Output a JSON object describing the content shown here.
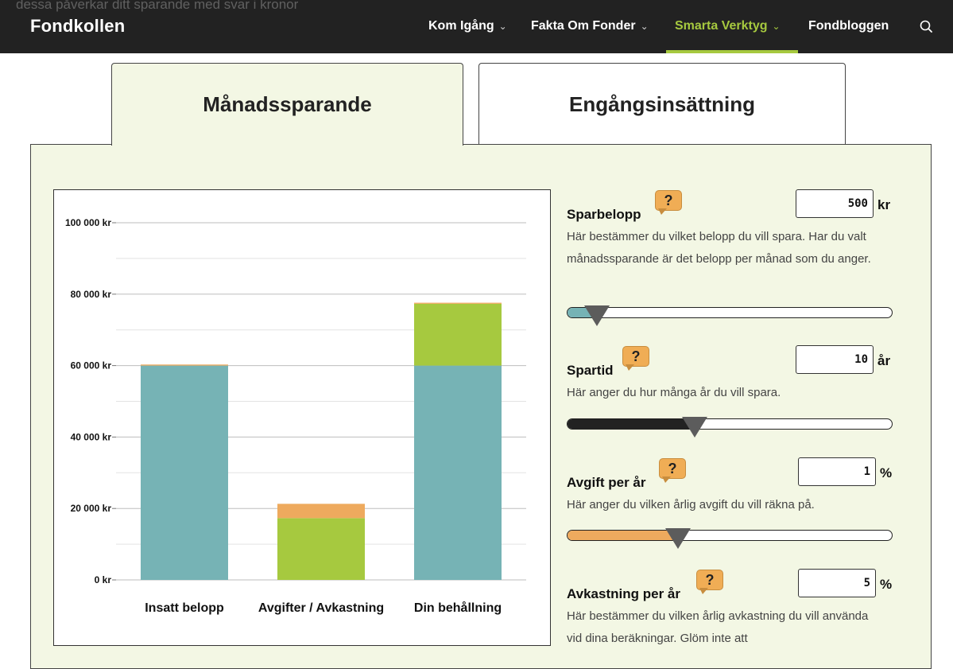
{
  "nav": {
    "ghost_text": "dessa påverkar ditt sparande med svar i kronor",
    "logo": "Fondkollen",
    "items": [
      {
        "label": "Kom Igång",
        "chevron": "⌄",
        "active": false
      },
      {
        "label": "Fakta Om Fonder",
        "chevron": "⌄",
        "active": false
      },
      {
        "label": "Smarta Verktyg",
        "chevron": "⌄",
        "active": true
      },
      {
        "label": "Fondbloggen",
        "chevron": "",
        "active": false
      }
    ],
    "search_icon": "search-icon"
  },
  "tabs": [
    {
      "label": "Månadssparande",
      "selected": true
    },
    {
      "label": "Engångsinsättning",
      "selected": false
    }
  ],
  "colors": {
    "accent_green": "#a6c93f",
    "teal": "#76b3b5",
    "fee_orange": "#eeaa5e",
    "panel_bg": "#f3f7e4",
    "slider_dark": "#222222",
    "thumb": "#5c5c5c"
  },
  "chart_data": {
    "type": "bar",
    "stacked": true,
    "categories": [
      "Insatt belopp",
      "Avgifter / Avkastning",
      "Din behållning"
    ],
    "yticks": [
      "0 kr",
      "20 000 kr",
      "40 000 kr",
      "60 000 kr",
      "80 000 kr",
      "100 000 kr"
    ],
    "ylim": [
      0,
      100000
    ],
    "grid": true,
    "series": [
      {
        "color": "#76b3b5",
        "values": [
          60000,
          0,
          60000
        ]
      },
      {
        "color": "#a6c93f",
        "values": [
          0,
          17300,
          17300
        ]
      },
      {
        "color": "#eeaa5e",
        "values": [
          300,
          4000,
          300
        ]
      }
    ]
  },
  "controls": {
    "sparbelopp": {
      "title": "Sparbelopp",
      "help": "?",
      "value": "500",
      "unit": "kr",
      "desc": "Här bestämmer du vilket belopp du vill spara. Har du valt månadssparande är det belopp per månad som du anger.",
      "slider_level": 0.09,
      "slider_color": "#76b3b5"
    },
    "spartid": {
      "title": "Spartid",
      "help": "?",
      "value": "10",
      "unit": "år",
      "desc": "Här anger du hur många år du vill spara.",
      "slider_level": 0.39,
      "slider_color": "#222222"
    },
    "avgift": {
      "title": "Avgift per år",
      "help": "?",
      "value": "1",
      "unit": "%",
      "desc": "Här anger du vilken årlig avgift du vill räkna på.",
      "slider_level": 0.34,
      "slider_color": "#eeaa5e"
    },
    "avkastning": {
      "title": "Avkastning per år",
      "help": "?",
      "value": "5",
      "unit": "%",
      "desc": "Här bestämmer du vilken årlig avkastning du vill använda vid dina beräkningar. Glöm inte att"
    }
  }
}
